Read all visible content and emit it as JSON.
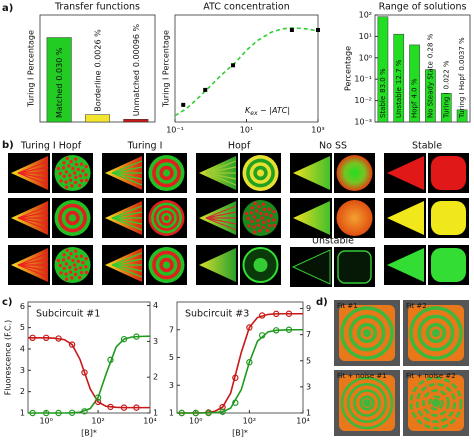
{
  "panel_labels": {
    "a": "a)",
    "b": "b)",
    "c": "c)",
    "d": "d)"
  },
  "chart_data": [
    {
      "type": "bar",
      "title": "Transfer functions",
      "ylabel": "Turing I Percentage",
      "categories": [
        "Matched",
        "Borderline",
        "Unmatched"
      ],
      "values": [
        0.03,
        0.0026,
        0.00096
      ],
      "value_labels": [
        "0.030 %",
        "0.0026 %",
        "0.00096 %"
      ],
      "colors": [
        "#22cc22",
        "#f2e52e",
        "#c81818"
      ],
      "ylim": [
        0,
        0.038
      ]
    },
    {
      "type": "line",
      "title": "ATC concentration",
      "ylabel": "Turing I Percentage",
      "xscale": "log",
      "xlim": [
        0.1,
        1000
      ],
      "xticks": [
        {
          "value": 0.1,
          "label": "10⁻¹"
        },
        {
          "value": 10,
          "label": "10¹"
        },
        {
          "value": 1000,
          "label": "10³"
        }
      ],
      "ylim": [
        0,
        1
      ],
      "annotation": [
        "K",
        "ex",
        " − |ATC|"
      ],
      "series": [
        {
          "style": "dashed",
          "color": "#33cc33",
          "x": [
            0.1,
            0.2,
            0.5,
            1,
            2,
            5,
            10,
            20,
            50,
            100,
            200,
            500,
            1000
          ],
          "values": [
            0.06,
            0.12,
            0.24,
            0.34,
            0.44,
            0.56,
            0.67,
            0.76,
            0.84,
            0.87,
            0.88,
            0.87,
            0.85
          ]
        },
        {
          "style": "markers",
          "marker": "square",
          "color": "#000000",
          "x": [
            0.17,
            0.7,
            4.2,
            186,
            1000
          ],
          "values": [
            0.16,
            0.3,
            0.53,
            0.86,
            0.86
          ]
        }
      ]
    },
    {
      "type": "bar",
      "title": "Range of solutions",
      "ylabel": "Percentage",
      "yscale": "log",
      "ylim": [
        0.001,
        100
      ],
      "yticks": [
        {
          "value": 0.001,
          "label": "10⁻³"
        },
        {
          "value": 0.01,
          "label": "10⁻²"
        },
        {
          "value": 0.1,
          "label": "10⁻¹"
        },
        {
          "value": 1,
          "label": "10⁰"
        },
        {
          "value": 10,
          "label": "10¹"
        },
        {
          "value": 100,
          "label": "10²"
        }
      ],
      "categories": [
        "Stable",
        "Unstable",
        "Hopf",
        "No Steady State",
        "Turing I",
        "Turing I Hopf"
      ],
      "values": [
        83.0,
        12.7,
        4.0,
        0.28,
        0.022,
        0.0037
      ],
      "value_labels": [
        "83.0 %",
        "12.7 %",
        "4.0 %",
        "0.28 %",
        "0.022 %",
        "0.0037 %"
      ],
      "color": "#22dd22"
    },
    {
      "type": "line",
      "title": "Subcircuit #1",
      "ylabel": "Fluorescence (F.C.)",
      "xlabel": "[B]*",
      "xscale": "log",
      "xlim": [
        0.2,
        10000
      ],
      "xticks": [
        {
          "value": 1,
          "label": "10⁰"
        },
        {
          "value": 100,
          "label": "10²"
        },
        {
          "value": 10000,
          "label": "10⁴"
        }
      ],
      "ylim": [
        1,
        6.2
      ],
      "yticks": [
        1,
        2,
        3,
        4,
        5,
        6
      ],
      "ytick_color": "#1f9a1f",
      "y2lim": [
        1,
        4.1
      ],
      "y2ticks": [
        1,
        2,
        3,
        4
      ],
      "y2tick_color": "#c81818",
      "series": [
        {
          "style": "solid",
          "color": "#c81818",
          "axis": "y2",
          "x": [
            0.2,
            0.5,
            1,
            2,
            5,
            10,
            20,
            50,
            100,
            200,
            500,
            1000,
            2000,
            5000,
            10000
          ],
          "values": [
            3.1,
            3.1,
            3.1,
            3.09,
            3.05,
            2.91,
            2.5,
            1.67,
            1.31,
            1.19,
            1.16,
            1.15,
            1.15,
            1.15,
            1.15
          ]
        },
        {
          "style": "solid",
          "color": "#1f9a1f",
          "x": [
            0.2,
            0.5,
            1,
            2,
            5,
            10,
            20,
            50,
            100,
            200,
            500,
            1000,
            2000,
            5000,
            10000
          ],
          "values": [
            1,
            1,
            1,
            1,
            1,
            1.01,
            1.04,
            1.21,
            1.72,
            2.8,
            4.1,
            4.46,
            4.56,
            4.59,
            4.6
          ]
        },
        {
          "style": "markers",
          "marker": "circle",
          "color": "#c81818",
          "axis": "y2",
          "x": [
            0.3,
            1,
            3,
            10,
            30,
            100,
            300,
            1000,
            3000
          ],
          "values": [
            3.1,
            3.1,
            3.08,
            2.91,
            2.13,
            1.31,
            1.17,
            1.15,
            1.15
          ]
        },
        {
          "style": "markers",
          "marker": "circle",
          "color": "#1f9a1f",
          "x": [
            0.3,
            1,
            3,
            10,
            30,
            100,
            300,
            1000,
            3000
          ],
          "values": [
            1,
            1,
            1,
            1.01,
            1.08,
            1.72,
            3.49,
            4.46,
            4.58
          ]
        }
      ]
    },
    {
      "type": "line",
      "title": "Subcircuit #3",
      "xlabel": "[B]*",
      "xscale": "log",
      "xlim": [
        0.2,
        10000
      ],
      "xticks": [
        {
          "value": 1,
          "label": "10⁰"
        },
        {
          "value": 100,
          "label": "10²"
        },
        {
          "value": 10000,
          "label": "10⁴"
        }
      ],
      "ylim": [
        1,
        9
      ],
      "yticks": [
        1,
        3,
        5,
        7
      ],
      "ytick_color": "#1f9a1f",
      "y2lim": [
        1,
        9.5
      ],
      "y2ticks": [
        1,
        3,
        5,
        7,
        9
      ],
      "y2tick_color": "#c81818",
      "series": [
        {
          "style": "solid",
          "color": "#c81818",
          "axis": "y2",
          "x": [
            0.2,
            0.5,
            1,
            2,
            5,
            10,
            20,
            50,
            100,
            200,
            500,
            1000,
            2000,
            5000,
            10000
          ],
          "values": [
            1,
            1,
            1,
            1.02,
            1.12,
            1.45,
            2.52,
            5.64,
            7.55,
            8.31,
            8.55,
            8.59,
            8.6,
            8.6,
            8.6
          ]
        },
        {
          "style": "solid",
          "color": "#1f9a1f",
          "x": [
            0.2,
            0.5,
            1,
            2,
            5,
            10,
            20,
            50,
            100,
            200,
            500,
            1000,
            2000,
            5000,
            10000
          ],
          "values": [
            1,
            1,
            1,
            1,
            1.02,
            1.09,
            1.35,
            2.69,
            4.66,
            6.17,
            6.85,
            6.96,
            6.99,
            7,
            7
          ]
        },
        {
          "style": "markers",
          "marker": "circle",
          "color": "#c81818",
          "axis": "y2",
          "x": [
            0.3,
            1,
            3,
            10,
            30,
            100,
            300,
            1000,
            3000
          ],
          "values": [
            1,
            1,
            1.04,
            1.45,
            3.7,
            7.55,
            8.47,
            8.59,
            8.6
          ]
        },
        {
          "style": "markers",
          "marker": "circle",
          "color": "#1f9a1f",
          "x": [
            0.3,
            1,
            3,
            10,
            30,
            100,
            300,
            1000,
            3000
          ],
          "values": [
            1,
            1,
            1,
            1.09,
            1.74,
            4.66,
            6.6,
            6.96,
            7
          ]
        }
      ]
    }
  ],
  "panel_b": {
    "columns": [
      "Turing I Hopf",
      "Turing I",
      "Hopf",
      "No SS",
      "Stable"
    ],
    "unstable": "Unstable"
  },
  "panel_d": {
    "fits": [
      "Fit #1",
      "Fit #2",
      "Fit + noise #1",
      "Fit + noise #2"
    ]
  }
}
